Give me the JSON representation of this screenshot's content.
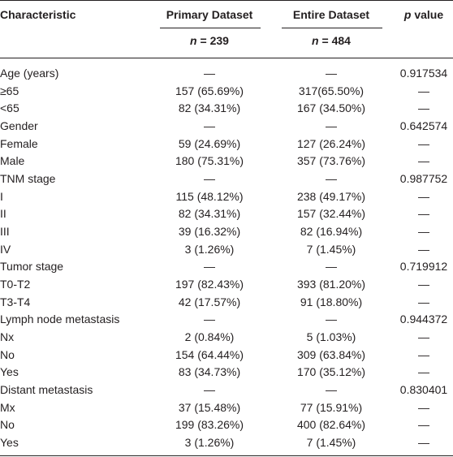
{
  "header": {
    "columns": [
      "Characteristic",
      "Primary Dataset",
      "Entire Dataset"
    ],
    "p_column": {
      "symbol": "p",
      "label": "value"
    },
    "sample_sizes": [
      {
        "symbol": "n",
        "label": "= 239"
      },
      {
        "symbol": "n",
        "label": "= 484"
      }
    ]
  },
  "table": {
    "rows": [
      [
        "Age (years)",
        "—",
        "—",
        "0.917534"
      ],
      [
        "≥65",
        "157 (65.69%)",
        "317(65.50%)",
        "—"
      ],
      [
        "<65",
        "82 (34.31%)",
        "167 (34.50%)",
        "—"
      ],
      [
        "Gender",
        "—",
        "—",
        "0.642574"
      ],
      [
        "Female",
        "59 (24.69%)",
        "127 (26.24%)",
        "—"
      ],
      [
        "Male",
        "180 (75.31%)",
        "357 (73.76%)",
        "—"
      ],
      [
        "TNM stage",
        "—",
        "—",
        "0.987752"
      ],
      [
        "I",
        "115 (48.12%)",
        "238 (49.17%)",
        "—"
      ],
      [
        "II",
        "82 (34.31%)",
        "157 (32.44%)",
        "—"
      ],
      [
        "III",
        "39 (16.32%)",
        "82 (16.94%)",
        "—"
      ],
      [
        "IV",
        "3 (1.26%)",
        "7 (1.45%)",
        "—"
      ],
      [
        "Tumor stage",
        "—",
        "—",
        "0.719912"
      ],
      [
        "T0-T2",
        "197 (82.43%)",
        "393 (81.20%)",
        "—"
      ],
      [
        "T3-T4",
        "42 (17.57%)",
        "91 (18.80%)",
        "—"
      ],
      [
        "Lymph node metastasis",
        "—",
        "—",
        "0.944372"
      ],
      [
        "Nx",
        "2 (0.84%)",
        "5 (1.03%)",
        "—"
      ],
      [
        "No",
        "154 (64.44%)",
        "309 (63.84%)",
        "—"
      ],
      [
        "Yes",
        "83 (34.73%)",
        "170 (35.12%)",
        "—"
      ],
      [
        "Distant metastasis",
        "—",
        "—",
        "0.830401"
      ],
      [
        "Mx",
        "37 (15.48%)",
        "77 (15.91%)",
        "—"
      ],
      [
        "No",
        "199 (83.26%)",
        "400 (82.64%)",
        "—"
      ],
      [
        "Yes",
        "3 (1.26%)",
        "7 (1.45%)",
        "—"
      ]
    ]
  }
}
